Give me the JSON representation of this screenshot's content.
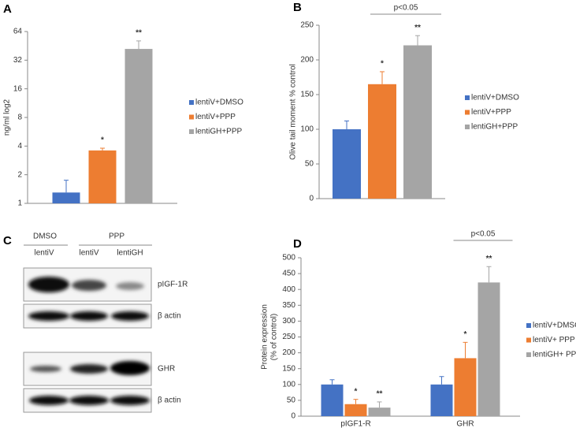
{
  "chart_data": [
    {
      "type": "bar",
      "panel": "A",
      "ylabel": [
        "ng/ml log2"
      ],
      "log_base": 2,
      "categories": [
        null
      ],
      "series": [
        {
          "name": "lentiV+DMSO",
          "color": "#4472c4",
          "values": [
            1.3
          ],
          "errors": [
            0.45
          ],
          "annotations": [
            null
          ]
        },
        {
          "name": "lentiV+PPP",
          "color": "#ed7d31",
          "values": [
            3.6
          ],
          "errors": [
            0.2
          ],
          "annotations": [
            "*"
          ]
        },
        {
          "name": "lentiGH+PPP",
          "color": "#a5a5a5",
          "values": [
            42
          ],
          "errors": [
            9
          ],
          "annotations": [
            "**"
          ]
        }
      ],
      "ylim": [
        1,
        64
      ],
      "yticks": [
        1,
        2,
        4,
        8,
        16,
        32,
        64
      ]
    },
    {
      "type": "bar",
      "panel": "B",
      "ylabel": [
        "Olive tail moment % control"
      ],
      "categories": [
        null
      ],
      "significance": "p<0.05",
      "series": [
        {
          "name": "lentiV+DMSO",
          "color": "#4472c4",
          "values": [
            100
          ],
          "errors": [
            12
          ],
          "annotations": [
            null
          ]
        },
        {
          "name": "lentiV+PPP",
          "color": "#ed7d31",
          "values": [
            165
          ],
          "errors": [
            18
          ],
          "annotations": [
            "*"
          ]
        },
        {
          "name": "lentiGH+PPP",
          "color": "#a5a5a5",
          "values": [
            221
          ],
          "errors": [
            14
          ],
          "annotations": [
            "**"
          ]
        }
      ],
      "ylim": [
        0,
        250
      ],
      "yticks": [
        0,
        50,
        100,
        150,
        200,
        250
      ]
    },
    {
      "type": "bar",
      "panel": "D",
      "ylabel": [
        "Protein expression",
        "(% of control)"
      ],
      "categories": [
        "pIGF1-R",
        "GHR"
      ],
      "significance": "p<0.05",
      "series": [
        {
          "name": "lentiV+DMSO",
          "color": "#4472c4",
          "values": [
            100,
            100
          ],
          "errors": [
            15,
            25
          ],
          "annotations": [
            null,
            null
          ]
        },
        {
          "name": "lentiV+ PPP",
          "color": "#ed7d31",
          "values": [
            38,
            183
          ],
          "errors": [
            15,
            50
          ],
          "annotations": [
            "*",
            "*"
          ]
        },
        {
          "name": "lentiGH+ PPP",
          "color": "#a5a5a5",
          "values": [
            27,
            422
          ],
          "errors": [
            18,
            50
          ],
          "annotations": [
            "**",
            "**"
          ]
        }
      ],
      "ylim": [
        0,
        500
      ],
      "yticks": [
        0,
        50,
        100,
        150,
        200,
        250,
        300,
        350,
        400,
        450,
        500
      ]
    }
  ],
  "blot": {
    "panel": "C",
    "groups": [
      "DMSO",
      "PPP"
    ],
    "lanes": [
      "lentiV",
      "lentiV",
      "lentiGH"
    ],
    "rows": [
      "pIGF-1R",
      "β actin",
      "GHR",
      "β actin"
    ]
  }
}
